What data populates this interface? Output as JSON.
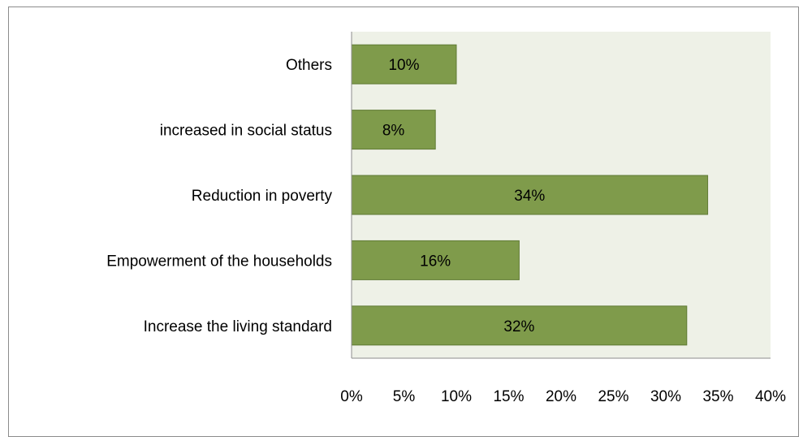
{
  "chart_data": {
    "type": "bar",
    "orientation": "horizontal",
    "categories": [
      "Others",
      "increased in social status",
      "Reduction in poverty ",
      "Empowerment of the households",
      "Increase the living standard"
    ],
    "values": [
      10,
      8,
      34,
      16,
      32
    ],
    "data_labels": [
      "10%",
      "8%",
      "34%",
      "16%",
      "32%"
    ],
    "x_ticks": [
      "0%",
      "5%",
      "10%",
      "15%",
      "20%",
      "25%",
      "30%",
      "35%",
      "40%"
    ],
    "xlim": [
      0,
      40
    ],
    "title": "",
    "xlabel": "",
    "ylabel": "",
    "grid": false,
    "legend": "none",
    "colors": {
      "bar_fill": "#7f9b4b",
      "bar_stroke": "#5f7a34",
      "plot_bg": "#eef1e7",
      "axis": "#8c8c8c"
    }
  }
}
